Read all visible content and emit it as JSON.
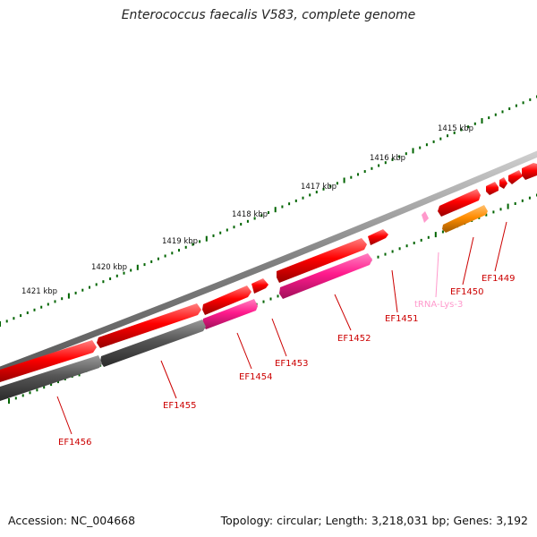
{
  "title": "Enterococcus faecalis V583, complete genome",
  "footer": {
    "accession": "Accession: NC_004668",
    "summary": "Topology: circular; Length: 3,218,031 bp; Genes: 3,192"
  },
  "colors": {
    "cds_red": "#ff0000",
    "cds_gray": "#555555",
    "cds_pink": "#ff1a8c",
    "cds_orange": "#ff8c00",
    "trna": "#ff99cc",
    "tick": "#006400",
    "label": "#cc0000"
  },
  "kbp_ticks": [
    {
      "label": "1415 kbp"
    },
    {
      "label": "1416 kbp"
    },
    {
      "label": "1417 kbp"
    },
    {
      "label": "1418 kbp"
    },
    {
      "label": "1419 kbp"
    },
    {
      "label": "1420 kbp"
    },
    {
      "label": "1421 kbp"
    }
  ],
  "features": [
    {
      "id": "EF1449",
      "type": "CDS",
      "strand": "-",
      "color": "cds_red"
    },
    {
      "id": "EF1450",
      "type": "CDS",
      "strand": "-",
      "color": "cds_orange"
    },
    {
      "id": "tRNA-Lys-3",
      "type": "tRNA",
      "strand": "-",
      "color": "trna"
    },
    {
      "id": "EF1451",
      "type": "CDS",
      "strand": "+",
      "color": "cds_red"
    },
    {
      "id": "EF1452",
      "type": "CDS",
      "strand": "-",
      "color": "cds_pink"
    },
    {
      "id": "EF1453",
      "type": "CDS",
      "strand": "+",
      "color": "cds_red"
    },
    {
      "id": "EF1454",
      "type": "CDS",
      "strand": "-",
      "color": "cds_pink"
    },
    {
      "id": "EF1455",
      "type": "CDS",
      "strand": "-",
      "color": "cds_gray"
    },
    {
      "id": "EF1456",
      "type": "CDS",
      "strand": "+",
      "color": "cds_red"
    }
  ]
}
